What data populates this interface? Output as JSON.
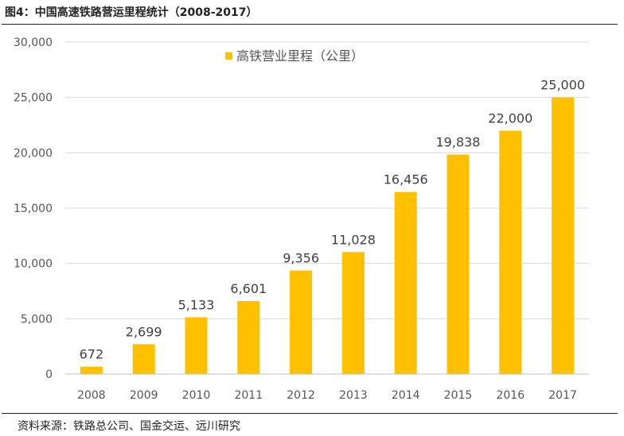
{
  "header": {
    "figure_title": "图4：中国高速铁路营运里程统计（2008-2017）"
  },
  "footer": {
    "source": "资料来源：铁路总公司、国金交运、远川研究"
  },
  "colors": {
    "bar": "#FFC000",
    "grid": "#D9D9D9",
    "axis": "#BFBFBF"
  },
  "chart_data": {
    "type": "bar",
    "title": "图4：中国高速铁路营运里程统计（2008-2017）",
    "xlabel": "",
    "ylabel": "",
    "ylim": [
      0,
      30000
    ],
    "yticks": [
      0,
      5000,
      10000,
      15000,
      20000,
      25000,
      30000
    ],
    "ytick_labels": [
      "0",
      "5,000",
      "10,000",
      "15,000",
      "20,000",
      "25,000",
      "30,000"
    ],
    "grid": true,
    "legend_position": "top",
    "categories": [
      "2008",
      "2009",
      "2010",
      "2011",
      "2012",
      "2013",
      "2014",
      "2015",
      "2016",
      "2017"
    ],
    "series": [
      {
        "name": "高铁营业里程（公里）",
        "values": [
          672,
          2699,
          5133,
          6601,
          9356,
          11028,
          16456,
          19838,
          22000,
          25000
        ],
        "labels": [
          "672",
          "2,699",
          "5,133",
          "6,601",
          "9,356",
          "11,028",
          "16,456",
          "19,838",
          "22,000",
          "25,000"
        ]
      }
    ]
  }
}
